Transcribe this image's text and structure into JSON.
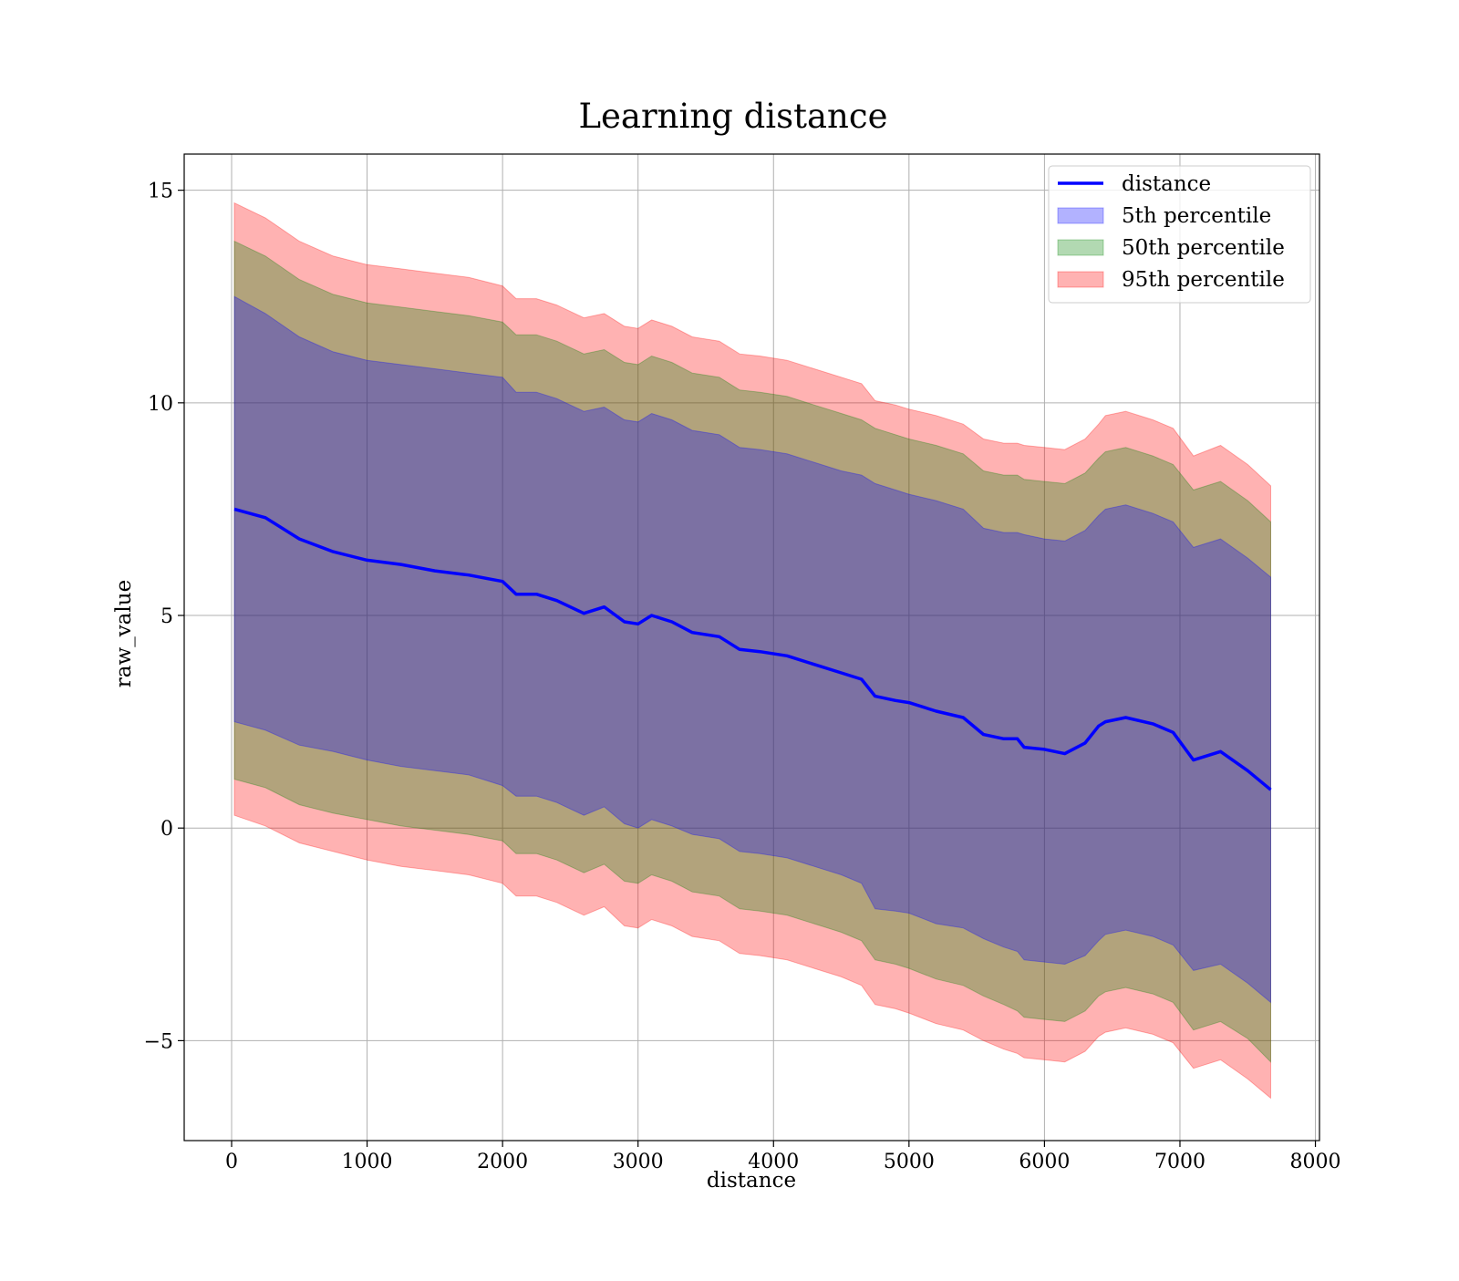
{
  "chart_data": {
    "type": "line",
    "title": "Learning distance",
    "xlabel": "distance",
    "ylabel": "raw_value",
    "xlim": [
      -350,
      8030
    ],
    "ylim": [
      -7.35,
      15.85
    ],
    "xticks": [
      0,
      1000,
      2000,
      3000,
      4000,
      5000,
      6000,
      7000,
      8000
    ],
    "xtick_labels": [
      "0",
      "1000",
      "2000",
      "3000",
      "4000",
      "5000",
      "6000",
      "7000",
      "8000"
    ],
    "yticks": [
      -5,
      0,
      5,
      10,
      15
    ],
    "ytick_labels": [
      "−5",
      "0",
      "5",
      "10",
      "15"
    ],
    "grid": true,
    "legend_position": "top-right",
    "legend": [
      {
        "label": "distance",
        "kind": "line",
        "color": "#0000ff"
      },
      {
        "label": "5th percentile",
        "kind": "patch",
        "color": "#0000ff"
      },
      {
        "label": "50th percentile",
        "kind": "patch",
        "color": "#008000"
      },
      {
        "label": "95th percentile",
        "kind": "patch",
        "color": "#ff0000"
      }
    ],
    "x": [
      20,
      250,
      500,
      750,
      1000,
      1250,
      1500,
      1750,
      2000,
      2100,
      2250,
      2400,
      2500,
      2600,
      2750,
      2900,
      3000,
      3100,
      3250,
      3400,
      3600,
      3750,
      3900,
      4100,
      4300,
      4500,
      4650,
      4750,
      4900,
      5000,
      5200,
      5400,
      5550,
      5700,
      5800,
      5850,
      6000,
      6150,
      6300,
      6400,
      6450,
      6600,
      6800,
      6950,
      7100,
      7300,
      7500,
      7670
    ],
    "series": [
      {
        "name": "distance",
        "color": "#0000ff",
        "values": [
          7.5,
          7.3,
          6.8,
          6.5,
          6.3,
          6.2,
          6.05,
          5.95,
          5.8,
          5.5,
          5.5,
          5.35,
          5.2,
          5.05,
          5.2,
          4.85,
          4.8,
          5.0,
          4.85,
          4.6,
          4.5,
          4.2,
          4.15,
          4.05,
          3.85,
          3.65,
          3.5,
          3.1,
          3.0,
          2.95,
          2.75,
          2.6,
          2.2,
          2.1,
          2.1,
          1.9,
          1.85,
          1.75,
          2.0,
          2.4,
          2.5,
          2.6,
          2.45,
          2.25,
          1.6,
          1.8,
          1.35,
          0.9
        ]
      },
      {
        "name": "5th percentile",
        "color": "#0000ff",
        "upper": [
          12.5,
          12.1,
          11.55,
          11.2,
          11.0,
          10.9,
          10.8,
          10.7,
          10.6,
          10.25,
          10.25,
          10.1,
          9.95,
          9.8,
          9.9,
          9.6,
          9.55,
          9.75,
          9.6,
          9.35,
          9.25,
          8.95,
          8.9,
          8.8,
          8.6,
          8.4,
          8.3,
          8.1,
          7.95,
          7.85,
          7.7,
          7.5,
          7.05,
          6.95,
          6.95,
          6.9,
          6.8,
          6.75,
          7.0,
          7.35,
          7.5,
          7.6,
          7.4,
          7.2,
          6.6,
          6.8,
          6.35,
          5.9
        ],
        "lower": [
          2.5,
          2.3,
          1.95,
          1.8,
          1.6,
          1.45,
          1.35,
          1.25,
          1.0,
          0.75,
          0.75,
          0.6,
          0.45,
          0.3,
          0.5,
          0.1,
          0.0,
          0.2,
          0.05,
          -0.15,
          -0.25,
          -0.55,
          -0.6,
          -0.7,
          -0.9,
          -1.1,
          -1.3,
          -1.9,
          -1.95,
          -2.0,
          -2.25,
          -2.35,
          -2.6,
          -2.8,
          -2.9,
          -3.1,
          -3.15,
          -3.2,
          -3.0,
          -2.65,
          -2.5,
          -2.4,
          -2.55,
          -2.75,
          -3.35,
          -3.2,
          -3.65,
          -4.1
        ]
      },
      {
        "name": "50th percentile",
        "color": "#008000",
        "upper": [
          13.8,
          13.45,
          12.9,
          12.55,
          12.35,
          12.25,
          12.15,
          12.05,
          11.9,
          11.6,
          11.6,
          11.45,
          11.3,
          11.15,
          11.25,
          10.95,
          10.9,
          11.1,
          10.95,
          10.7,
          10.6,
          10.3,
          10.25,
          10.15,
          9.95,
          9.75,
          9.6,
          9.4,
          9.25,
          9.15,
          9.0,
          8.8,
          8.4,
          8.3,
          8.3,
          8.2,
          8.15,
          8.1,
          8.35,
          8.7,
          8.85,
          8.95,
          8.75,
          8.55,
          7.95,
          8.15,
          7.7,
          7.2
        ],
        "lower": [
          1.15,
          0.95,
          0.55,
          0.35,
          0.2,
          0.05,
          -0.05,
          -0.15,
          -0.3,
          -0.6,
          -0.6,
          -0.75,
          -0.9,
          -1.05,
          -0.85,
          -1.25,
          -1.3,
          -1.1,
          -1.25,
          -1.5,
          -1.6,
          -1.9,
          -1.95,
          -2.05,
          -2.25,
          -2.45,
          -2.65,
          -3.1,
          -3.2,
          -3.3,
          -3.55,
          -3.7,
          -3.95,
          -4.15,
          -4.3,
          -4.45,
          -4.5,
          -4.55,
          -4.3,
          -3.95,
          -3.85,
          -3.75,
          -3.9,
          -4.1,
          -4.75,
          -4.55,
          -4.95,
          -5.5
        ]
      },
      {
        "name": "95th percentile",
        "color": "#ff0000",
        "upper": [
          14.7,
          14.35,
          13.8,
          13.45,
          13.25,
          13.15,
          13.05,
          12.95,
          12.75,
          12.45,
          12.45,
          12.3,
          12.15,
          12.0,
          12.1,
          11.8,
          11.75,
          11.95,
          11.8,
          11.55,
          11.45,
          11.15,
          11.1,
          11.0,
          10.8,
          10.6,
          10.45,
          10.05,
          9.95,
          9.85,
          9.7,
          9.5,
          9.15,
          9.05,
          9.05,
          9.0,
          8.95,
          8.9,
          9.15,
          9.5,
          9.7,
          9.8,
          9.6,
          9.4,
          8.75,
          9.0,
          8.55,
          8.05
        ],
        "lower": [
          0.3,
          0.05,
          -0.35,
          -0.55,
          -0.75,
          -0.9,
          -1.0,
          -1.1,
          -1.3,
          -1.6,
          -1.6,
          -1.75,
          -1.9,
          -2.05,
          -1.85,
          -2.3,
          -2.35,
          -2.15,
          -2.3,
          -2.55,
          -2.65,
          -2.95,
          -3.0,
          -3.1,
          -3.3,
          -3.5,
          -3.7,
          -4.15,
          -4.25,
          -4.35,
          -4.6,
          -4.75,
          -5.0,
          -5.2,
          -5.3,
          -5.4,
          -5.45,
          -5.5,
          -5.25,
          -4.9,
          -4.8,
          -4.7,
          -4.85,
          -5.05,
          -5.65,
          -5.45,
          -5.9,
          -6.35
        ]
      }
    ]
  }
}
